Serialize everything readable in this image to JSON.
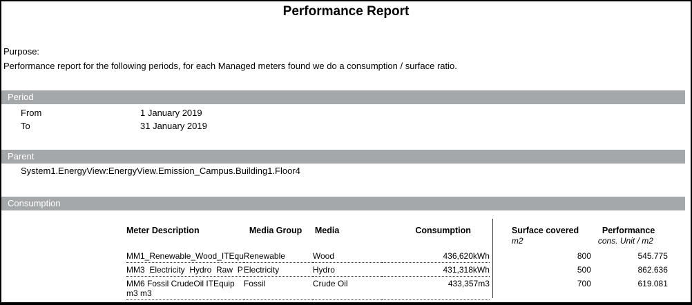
{
  "report": {
    "title": "Performance Report",
    "purpose_label": "Purpose:",
    "purpose_text": "Performance report for the following periods, for each Managed meters found we do a consumption / surface ratio."
  },
  "colors": {
    "section_bar": "#a5a8aa",
    "section_bar_text": "#ffffff"
  },
  "period": {
    "section_label": "Period",
    "rows": [
      {
        "label": "From",
        "value": "1 January 2019"
      },
      {
        "label": "To",
        "value": "31 January 2019"
      }
    ]
  },
  "parent": {
    "section_label": "Parent",
    "value": "System1.EnergyView:EnergyView.Emission_Campus.Building1.Floor4"
  },
  "consumption": {
    "section_label": "Consumption",
    "columns": {
      "meter": "Meter Description",
      "media_group": "Media Group",
      "media": "Media",
      "consumption": "Consumption",
      "surface": "Surface covered",
      "surface_unit": "m2",
      "performance": "Performance",
      "performance_unit": "cons. Unit / m2"
    },
    "rows": [
      {
        "meter": "MM1_Renewable_Wood_ITEqu",
        "media_group": "Renewable",
        "media": "Wood",
        "consumption": "436,620kWh",
        "surface": "800",
        "performance": "545.775"
      },
      {
        "meter": "MM3  Electricity  Hydro  Raw  P",
        "media_group": "Electricity",
        "media": "Hydro",
        "consumption": "431,318kWh",
        "surface": "500",
        "performance": "862.636"
      },
      {
        "meter": "MM6 Fossil CrudeOil ITEquip m3 m3",
        "media_group": "Fossil",
        "media": "Crude Oil",
        "consumption": "433,357m3",
        "surface": "700",
        "performance": "619.081"
      }
    ]
  }
}
